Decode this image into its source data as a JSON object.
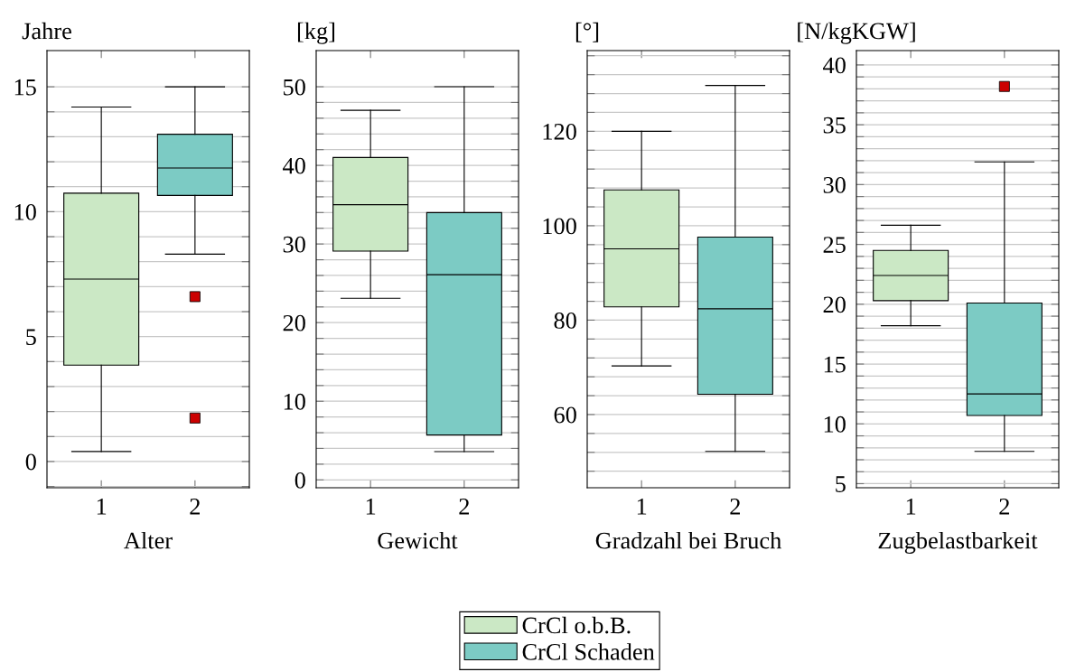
{
  "chart_data": [
    {
      "type": "box",
      "xlabel": "Alter",
      "ylabel": "Jahre",
      "categories": [
        "1",
        "2"
      ],
      "ylim": [
        -1.05,
        16.45
      ],
      "yticks": [
        {
          "value": -1,
          "label": null
        },
        0,
        {
          "value": 1,
          "label": null
        },
        {
          "value": 2,
          "label": null
        },
        {
          "value": 3,
          "label": null
        },
        {
          "value": 4,
          "label": null
        },
        5,
        {
          "value": 6,
          "label": null
        },
        {
          "value": 7,
          "label": null
        },
        {
          "value": 8,
          "label": null
        },
        {
          "value": 9,
          "label": null
        },
        10,
        {
          "value": 11,
          "label": null
        },
        {
          "value": 12,
          "label": null
        },
        {
          "value": 13,
          "label": null
        },
        {
          "value": 14,
          "label": null
        },
        15
      ],
      "grid": "y",
      "legend": "bottom",
      "marker": "square",
      "series": [
        {
          "name": "CrCl o.b.B.",
          "color": "#cbe8c5",
          "boxes": [
            {
              "low": 0.4,
              "q1": 3.86,
              "median": 7.3,
              "q3": 10.74,
              "high": 14.19
            },
            null
          ]
        },
        {
          "name": "CrCl Schaden",
          "color": "#7ccbc4",
          "boxes": [
            null,
            {
              "low": 8.3,
              "q1": 10.65,
              "median": 11.75,
              "q3": 13.1,
              "high": 15,
              "outliers": [
                6.6,
                1.74
              ]
            }
          ]
        }
      ]
    },
    {
      "type": "box",
      "xlabel": "Gewicht",
      "ylabel": "[kg]",
      "categories": [
        "1",
        "2"
      ],
      "ylim": [
        -1.0,
        54.6
      ],
      "yticks": [
        0,
        {
          "value": 2,
          "label": null
        },
        {
          "value": 4,
          "label": null
        },
        {
          "value": 6,
          "label": null
        },
        {
          "value": 8,
          "label": null
        },
        10,
        {
          "value": 12,
          "label": null
        },
        {
          "value": 14,
          "label": null
        },
        {
          "value": 16,
          "label": null
        },
        {
          "value": 18,
          "label": null
        },
        20,
        {
          "value": 22,
          "label": null
        },
        {
          "value": 24,
          "label": null
        },
        {
          "value": 26,
          "label": null
        },
        {
          "value": 28,
          "label": null
        },
        30,
        {
          "value": 32,
          "label": null
        },
        {
          "value": 34,
          "label": null
        },
        {
          "value": 36,
          "label": null
        },
        {
          "value": 38,
          "label": null
        },
        40,
        {
          "value": 42,
          "label": null
        },
        {
          "value": 44,
          "label": null
        },
        {
          "value": 46,
          "label": null
        },
        {
          "value": 48,
          "label": null
        },
        50
      ],
      "grid": "y",
      "legend": "bottom",
      "marker": "square",
      "series": [
        {
          "name": "CrCl o.b.B.",
          "color": "#cbe8c5",
          "boxes": [
            {
              "low": 23.1,
              "q1": 29.1,
              "median": 35.0,
              "q3": 41.0,
              "high": 47.0
            },
            null
          ]
        },
        {
          "name": "CrCl Schaden",
          "color": "#7ccbc4",
          "boxes": [
            null,
            {
              "low": 3.6,
              "q1": 5.7,
              "median": 26.1,
              "q3": 34.0,
              "high": 50
            }
          ]
        }
      ]
    },
    {
      "type": "box",
      "xlabel": "Gradzahl bei Bruch",
      "ylabel": "[°]",
      "categories": [
        "1",
        "2"
      ],
      "ylim": [
        44.5,
        137.1
      ],
      "yticks": [
        {
          "value": 48,
          "label": null
        },
        {
          "value": 52,
          "label": null
        },
        {
          "value": 56,
          "label": null
        },
        60,
        {
          "value": 64,
          "label": null
        },
        {
          "value": 68,
          "label": null
        },
        {
          "value": 72,
          "label": null
        },
        {
          "value": 76,
          "label": null
        },
        80,
        {
          "value": 84,
          "label": null
        },
        {
          "value": 88,
          "label": null
        },
        {
          "value": 92,
          "label": null
        },
        {
          "value": 96,
          "label": null
        },
        100,
        {
          "value": 104,
          "label": null
        },
        {
          "value": 108,
          "label": null
        },
        {
          "value": 112,
          "label": null
        },
        {
          "value": 116,
          "label": null
        },
        120,
        {
          "value": 124,
          "label": null
        },
        {
          "value": 128,
          "label": null
        },
        {
          "value": 132,
          "label": null
        },
        {
          "value": 136,
          "label": null
        }
      ],
      "grid": "y",
      "legend": "bottom",
      "marker": "square",
      "series": [
        {
          "name": "CrCl o.b.B.",
          "color": "#cbe8c5",
          "boxes": [
            {
              "low": 70.3,
              "q1": 82.8,
              "median": 95.1,
              "q3": 107.6,
              "high": 120
            },
            null
          ]
        },
        {
          "name": "CrCl Schaden",
          "color": "#7ccbc4",
          "boxes": [
            null,
            {
              "low": 52.2,
              "q1": 64.3,
              "median": 82.4,
              "q3": 97.6,
              "high": 129.7
            }
          ]
        }
      ]
    },
    {
      "type": "box",
      "xlabel": "Zugbelastbarkeit",
      "ylabel": "[N/kgKGW]",
      "categories": [
        "1",
        "2"
      ],
      "ylim": [
        4.66,
        41.2
      ],
      "yticks": [
        5,
        {
          "value": 6,
          "label": null
        },
        {
          "value": 7,
          "label": null
        },
        {
          "value": 8,
          "label": null
        },
        {
          "value": 9,
          "label": null
        },
        10,
        {
          "value": 11,
          "label": null
        },
        {
          "value": 12,
          "label": null
        },
        {
          "value": 13,
          "label": null
        },
        {
          "value": 14,
          "label": null
        },
        15,
        {
          "value": 16,
          "label": null
        },
        {
          "value": 17,
          "label": null
        },
        {
          "value": 18,
          "label": null
        },
        {
          "value": 19,
          "label": null
        },
        20,
        {
          "value": 21,
          "label": null
        },
        {
          "value": 22,
          "label": null
        },
        {
          "value": 23,
          "label": null
        },
        {
          "value": 24,
          "label": null
        },
        25,
        {
          "value": 26,
          "label": null
        },
        {
          "value": 27,
          "label": null
        },
        {
          "value": 28,
          "label": null
        },
        {
          "value": 29,
          "label": null
        },
        30,
        {
          "value": 31,
          "label": null
        },
        {
          "value": 32,
          "label": null
        },
        {
          "value": 33,
          "label": null
        },
        {
          "value": 34,
          "label": null
        },
        35,
        {
          "value": 36,
          "label": null
        },
        {
          "value": 37,
          "label": null
        },
        {
          "value": 38,
          "label": null
        },
        {
          "value": 39,
          "label": null
        },
        40
      ],
      "grid": "y",
      "legend": "bottom",
      "marker": "square",
      "series": [
        {
          "name": "CrCl o.b.B.",
          "color": "#cbe8c5",
          "boxes": [
            {
              "low": 18.2,
              "q1": 20.3,
              "median": 22.4,
              "q3": 24.5,
              "high": 26.6
            },
            null
          ]
        },
        {
          "name": "CrCl Schaden",
          "color": "#7ccbc4",
          "boxes": [
            null,
            {
              "low": 7.7,
              "q1": 10.7,
              "median": 12.5,
              "q3": 20.1,
              "high": 31.9,
              "outliers": [
                38.2
              ]
            }
          ]
        }
      ]
    }
  ]
}
